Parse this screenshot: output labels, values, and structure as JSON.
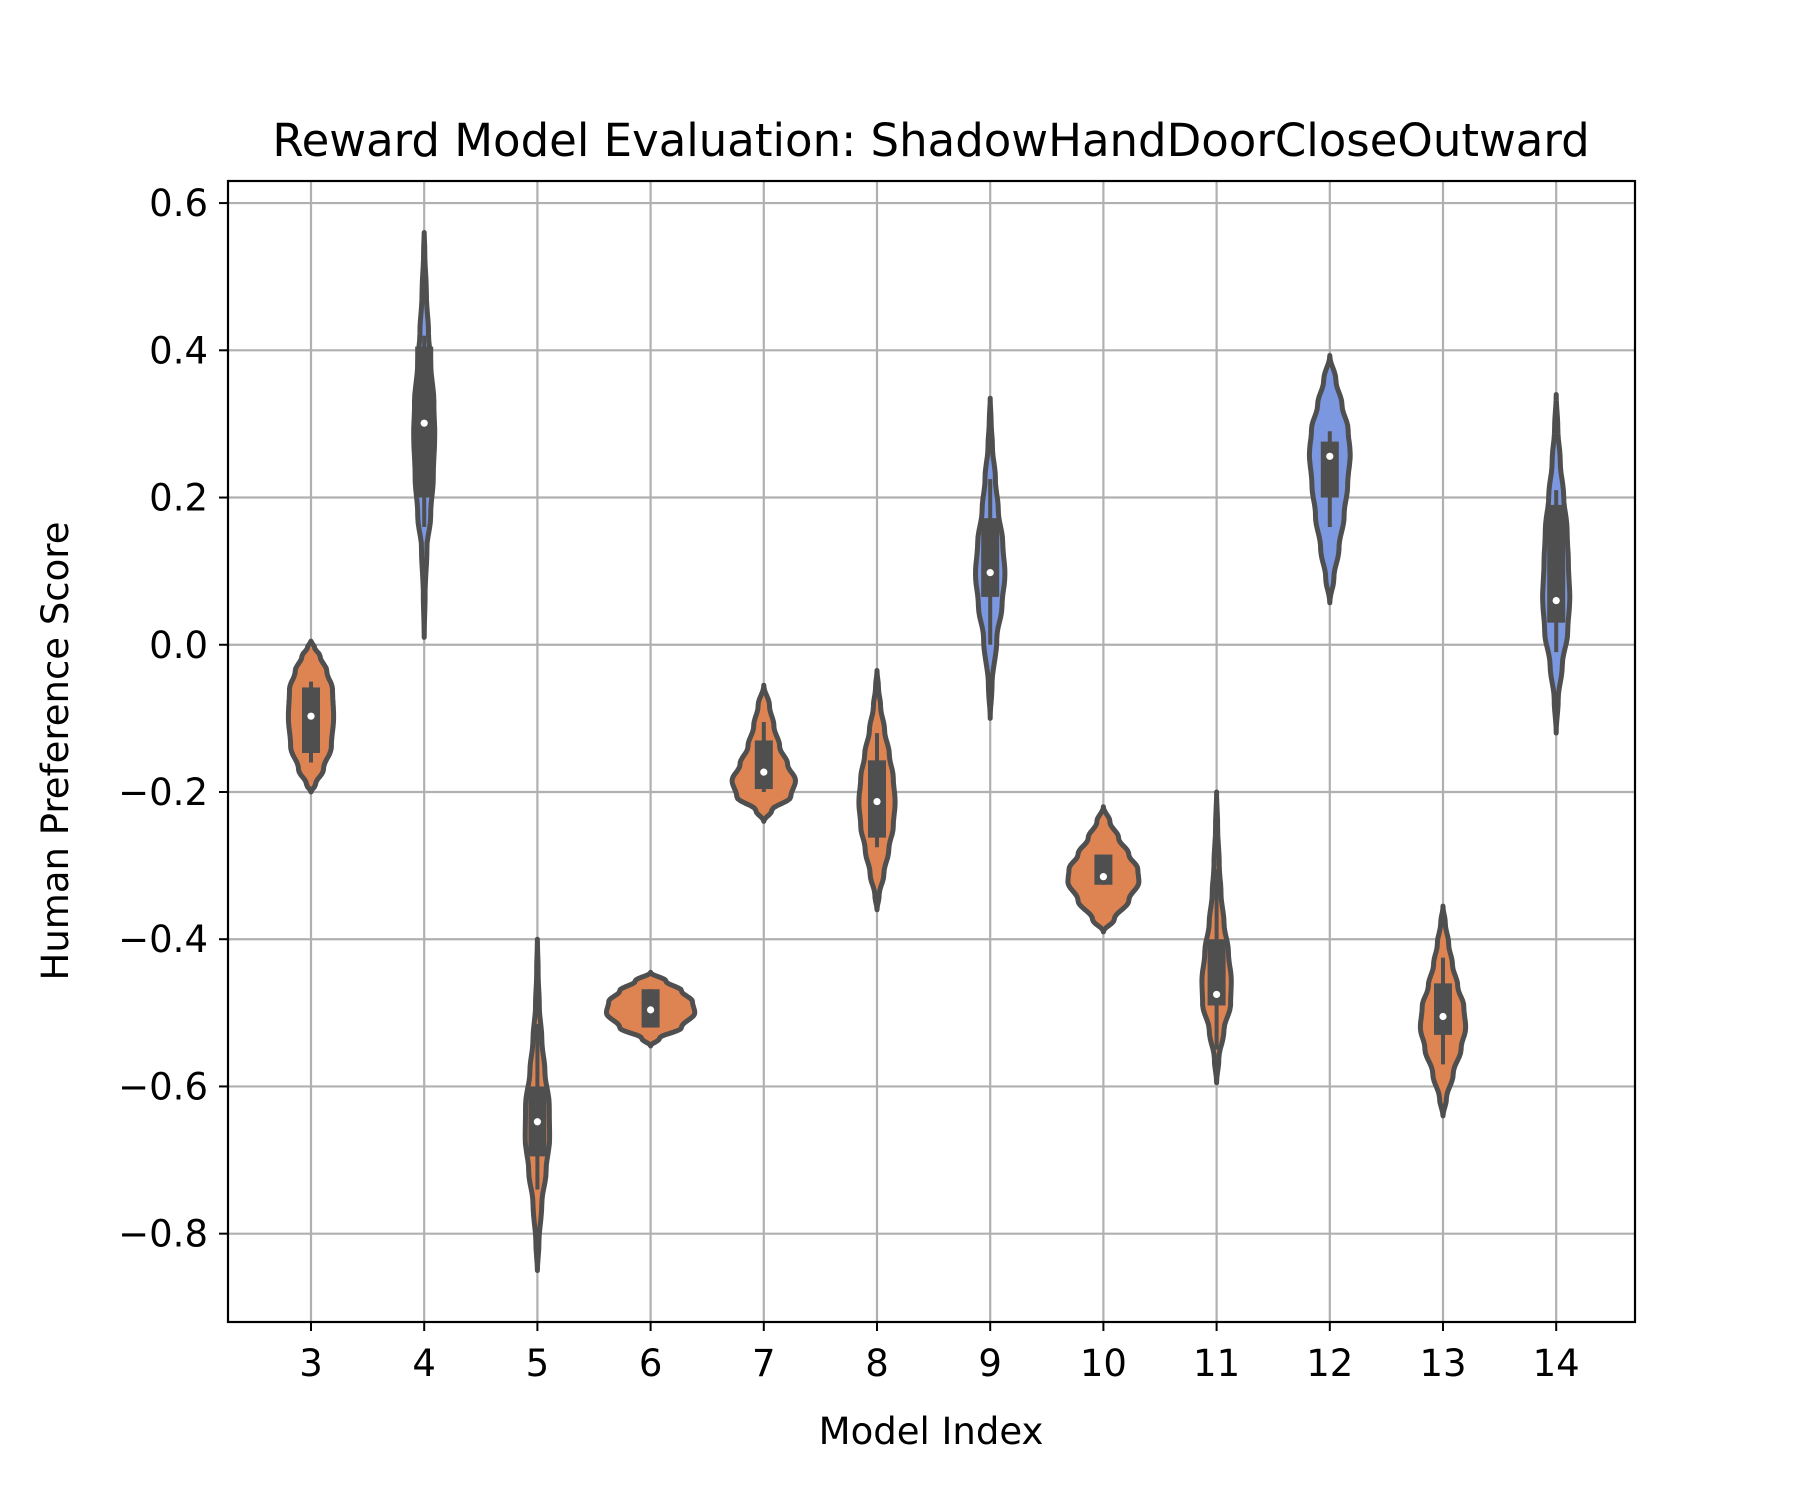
{
  "chart_data": {
    "type": "violin",
    "title": "Reward Model Evaluation: ShadowHandDoorCloseOutward",
    "xlabel": "Model Index",
    "ylabel": "Human Preference Score",
    "ylim": [
      -0.92,
      0.63
    ],
    "grid": true,
    "yticks": [
      "0.6",
      "0.4",
      "0.2",
      "0.0",
      "−0.2",
      "−0.4",
      "−0.6",
      "−0.8"
    ],
    "ytick_values": [
      0.6,
      0.4,
      0.2,
      0.0,
      -0.2,
      -0.4,
      -0.6,
      -0.8
    ],
    "categories": [
      "3",
      "4",
      "5",
      "6",
      "7",
      "8",
      "9",
      "10",
      "11",
      "12",
      "13",
      "14"
    ],
    "colors": {
      "orange": "#dd8452",
      "blue": "#7b97e0",
      "edge": "#4f4f4f",
      "grid": "#b0b0b0"
    },
    "violins": [
      {
        "category": "3",
        "color": "orange",
        "min": -0.2,
        "max": 0.005,
        "q1": -0.147,
        "median": -0.097,
        "q3": -0.058,
        "wlow": -0.16,
        "whigh": -0.05,
        "halfwidth": 0.2,
        "profile": [
          [
            0.0,
            0
          ],
          [
            0.05,
            0.2
          ],
          [
            0.15,
            0.55
          ],
          [
            0.3,
            0.9
          ],
          [
            0.5,
            1.0
          ],
          [
            0.68,
            0.95
          ],
          [
            0.8,
            0.7
          ],
          [
            0.9,
            0.4
          ],
          [
            0.96,
            0.15
          ],
          [
            1.0,
            0
          ]
        ]
      },
      {
        "category": "4",
        "color": "blue",
        "min": 0.01,
        "max": 0.56,
        "q1": 0.2,
        "median": 0.301,
        "q3": 0.405,
        "wlow": 0.16,
        "whigh": 0.42,
        "halfwidth": 0.095,
        "profile": [
          [
            0.0,
            0
          ],
          [
            0.1,
            0.08
          ],
          [
            0.22,
            0.25
          ],
          [
            0.3,
            0.6
          ],
          [
            0.4,
            0.85
          ],
          [
            0.5,
            0.98
          ],
          [
            0.58,
            0.9
          ],
          [
            0.68,
            0.6
          ],
          [
            0.75,
            0.4
          ],
          [
            0.85,
            0.2
          ],
          [
            0.95,
            0.06
          ],
          [
            1.0,
            0
          ]
        ]
      },
      {
        "category": "5",
        "color": "orange",
        "min": -0.85,
        "max": -0.4,
        "q1": -0.695,
        "median": -0.648,
        "q3": -0.6,
        "wlow": -0.74,
        "whigh": -0.515,
        "halfwidth": 0.11,
        "profile": [
          [
            0.0,
            0
          ],
          [
            0.08,
            0.12
          ],
          [
            0.2,
            0.35
          ],
          [
            0.3,
            0.7
          ],
          [
            0.4,
            0.98
          ],
          [
            0.5,
            0.95
          ],
          [
            0.6,
            0.6
          ],
          [
            0.7,
            0.35
          ],
          [
            0.8,
            0.15
          ],
          [
            0.9,
            0.06
          ],
          [
            1.0,
            0
          ]
        ]
      },
      {
        "category": "6",
        "color": "orange",
        "min": -0.545,
        "max": -0.445,
        "q1": -0.52,
        "median": -0.496,
        "q3": -0.468,
        "wlow": -0.52,
        "whigh": -0.468,
        "halfwidth": 0.39,
        "profile": [
          [
            0.0,
            0
          ],
          [
            0.1,
            0.2
          ],
          [
            0.25,
            0.7
          ],
          [
            0.45,
            1.0
          ],
          [
            0.6,
            0.95
          ],
          [
            0.75,
            0.7
          ],
          [
            0.88,
            0.35
          ],
          [
            1.0,
            0
          ]
        ]
      },
      {
        "category": "7",
        "color": "orange",
        "min": -0.24,
        "max": -0.055,
        "q1": -0.196,
        "median": -0.173,
        "q3": -0.13,
        "wlow": -0.2,
        "whigh": -0.105,
        "halfwidth": 0.28,
        "profile": [
          [
            0.0,
            0
          ],
          [
            0.08,
            0.25
          ],
          [
            0.18,
            0.85
          ],
          [
            0.3,
            1.0
          ],
          [
            0.42,
            0.75
          ],
          [
            0.55,
            0.5
          ],
          [
            0.7,
            0.32
          ],
          [
            0.85,
            0.18
          ],
          [
            1.0,
            0
          ]
        ]
      },
      {
        "category": "8",
        "color": "orange",
        "min": -0.36,
        "max": -0.035,
        "q1": -0.262,
        "median": -0.213,
        "q3": -0.157,
        "wlow": -0.275,
        "whigh": -0.12,
        "halfwidth": 0.16,
        "profile": [
          [
            0.0,
            0
          ],
          [
            0.06,
            0.12
          ],
          [
            0.15,
            0.38
          ],
          [
            0.25,
            0.65
          ],
          [
            0.35,
            0.9
          ],
          [
            0.45,
            1.0
          ],
          [
            0.55,
            0.9
          ],
          [
            0.65,
            0.68
          ],
          [
            0.75,
            0.42
          ],
          [
            0.85,
            0.2
          ],
          [
            0.93,
            0.08
          ],
          [
            1.0,
            0
          ]
        ]
      },
      {
        "category": "9",
        "color": "blue",
        "min": -0.1,
        "max": 0.335,
        "q1": 0.065,
        "median": 0.098,
        "q3": 0.172,
        "wlow": 0.0,
        "whigh": 0.225,
        "halfwidth": 0.13,
        "profile": [
          [
            0.0,
            0
          ],
          [
            0.1,
            0.12
          ],
          [
            0.25,
            0.45
          ],
          [
            0.35,
            0.8
          ],
          [
            0.45,
            1.0
          ],
          [
            0.55,
            0.85
          ],
          [
            0.65,
            0.55
          ],
          [
            0.75,
            0.35
          ],
          [
            0.85,
            0.15
          ],
          [
            0.93,
            0.06
          ],
          [
            1.0,
            0
          ]
        ]
      },
      {
        "category": "10",
        "color": "orange",
        "min": -0.39,
        "max": -0.22,
        "q1": -0.326,
        "median": -0.315,
        "q3": -0.285,
        "wlow": -0.326,
        "whigh": -0.285,
        "halfwidth": 0.32,
        "profile": [
          [
            0.0,
            0
          ],
          [
            0.1,
            0.3
          ],
          [
            0.25,
            0.7
          ],
          [
            0.4,
            0.98
          ],
          [
            0.5,
            0.95
          ],
          [
            0.62,
            0.7
          ],
          [
            0.75,
            0.42
          ],
          [
            0.88,
            0.18
          ],
          [
            1.0,
            0
          ]
        ]
      },
      {
        "category": "11",
        "color": "orange",
        "min": -0.595,
        "max": -0.2,
        "q1": -0.49,
        "median": -0.475,
        "q3": -0.4,
        "wlow": -0.55,
        "whigh": -0.305,
        "halfwidth": 0.13,
        "profile": [
          [
            0.0,
            0
          ],
          [
            0.08,
            0.15
          ],
          [
            0.18,
            0.5
          ],
          [
            0.27,
            0.95
          ],
          [
            0.35,
            1.0
          ],
          [
            0.45,
            0.8
          ],
          [
            0.55,
            0.5
          ],
          [
            0.65,
            0.3
          ],
          [
            0.75,
            0.18
          ],
          [
            0.88,
            0.07
          ],
          [
            1.0,
            0
          ]
        ]
      },
      {
        "category": "12",
        "color": "blue",
        "min": 0.057,
        "max": 0.393,
        "q1": 0.2,
        "median": 0.256,
        "q3": 0.276,
        "wlow": 0.16,
        "whigh": 0.29,
        "halfwidth": 0.18,
        "profile": [
          [
            0.0,
            0
          ],
          [
            0.1,
            0.2
          ],
          [
            0.22,
            0.45
          ],
          [
            0.35,
            0.7
          ],
          [
            0.48,
            0.88
          ],
          [
            0.6,
            1.0
          ],
          [
            0.7,
            0.9
          ],
          [
            0.8,
            0.6
          ],
          [
            0.9,
            0.3
          ],
          [
            1.0,
            0
          ]
        ]
      },
      {
        "category": "13",
        "color": "orange",
        "min": -0.64,
        "max": -0.355,
        "q1": -0.53,
        "median": -0.505,
        "q3": -0.46,
        "wlow": -0.57,
        "whigh": -0.425,
        "halfwidth": 0.2,
        "profile": [
          [
            0.0,
            0
          ],
          [
            0.08,
            0.15
          ],
          [
            0.2,
            0.45
          ],
          [
            0.32,
            0.8
          ],
          [
            0.42,
            1.0
          ],
          [
            0.52,
            0.92
          ],
          [
            0.62,
            0.65
          ],
          [
            0.72,
            0.42
          ],
          [
            0.82,
            0.25
          ],
          [
            0.92,
            0.1
          ],
          [
            1.0,
            0
          ]
        ]
      },
      {
        "category": "14",
        "color": "blue",
        "min": -0.12,
        "max": 0.34,
        "q1": 0.03,
        "median": 0.06,
        "q3": 0.19,
        "wlow": -0.01,
        "whigh": 0.21,
        "halfwidth": 0.12,
        "profile": [
          [
            0.0,
            0
          ],
          [
            0.1,
            0.15
          ],
          [
            0.2,
            0.45
          ],
          [
            0.3,
            0.85
          ],
          [
            0.4,
            1.0
          ],
          [
            0.5,
            0.9
          ],
          [
            0.6,
            0.8
          ],
          [
            0.7,
            0.55
          ],
          [
            0.8,
            0.3
          ],
          [
            0.9,
            0.12
          ],
          [
            1.0,
            0
          ]
        ]
      }
    ]
  }
}
